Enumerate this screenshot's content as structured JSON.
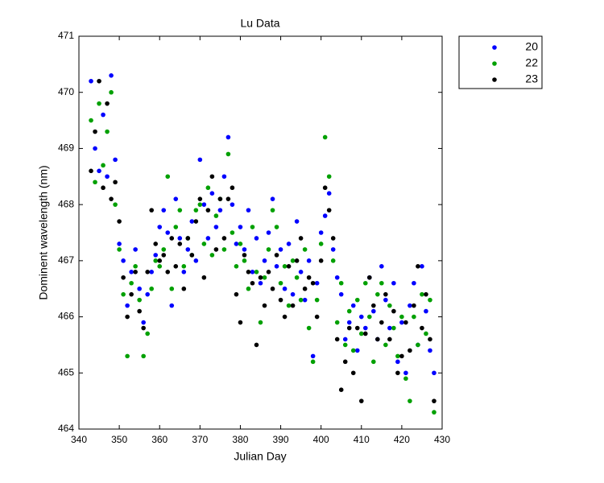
{
  "chart_data": {
    "type": "scatter",
    "title": "Lu Data",
    "xlabel": "Julian Day",
    "ylabel": "Dominent wavelength (nm)",
    "xlim": [
      340,
      430
    ],
    "ylim": [
      464,
      471
    ],
    "xticks": [
      340,
      350,
      360,
      370,
      380,
      390,
      400,
      410,
      420,
      430
    ],
    "yticks": [
      464,
      465,
      466,
      467,
      468,
      469,
      470,
      471
    ],
    "legend": "outside-top-right",
    "x": [
      343,
      344,
      345,
      346,
      347,
      348,
      349,
      350,
      351,
      352,
      353,
      354,
      355,
      356,
      357,
      358,
      359,
      360,
      361,
      362,
      363,
      364,
      365,
      366,
      367,
      368,
      369,
      370,
      371,
      372,
      373,
      374,
      375,
      376,
      377,
      378,
      379,
      380,
      381,
      382,
      383,
      384,
      385,
      386,
      387,
      388,
      389,
      390,
      391,
      392,
      393,
      394,
      395,
      396,
      397,
      398,
      399,
      400,
      401,
      402,
      403,
      404,
      405,
      406,
      407,
      408,
      409,
      410,
      411,
      412,
      413,
      414,
      415,
      416,
      417,
      418,
      419,
      420,
      421,
      422,
      423,
      424,
      425,
      426,
      427,
      428
    ],
    "series": [
      {
        "name": "20",
        "color": "#0000ff",
        "values": [
          470.2,
          469.0,
          468.6,
          469.6,
          468.5,
          470.3,
          468.8,
          467.3,
          467.0,
          466.2,
          466.8,
          467.2,
          466.5,
          465.9,
          466.4,
          466.8,
          467.1,
          467.6,
          467.9,
          467.5,
          466.2,
          468.1,
          467.4,
          466.8,
          467.2,
          467.7,
          467.0,
          468.8,
          468.0,
          467.4,
          468.2,
          467.6,
          467.9,
          468.5,
          469.2,
          468.0,
          467.3,
          467.6,
          467.2,
          467.9,
          466.8,
          467.4,
          466.6,
          467.0,
          467.5,
          468.1,
          466.9,
          467.2,
          466.5,
          467.3,
          466.4,
          467.7,
          466.8,
          466.3,
          467.0,
          465.3,
          466.6,
          467.5,
          467.8,
          468.2,
          467.2,
          466.7,
          466.4,
          465.6,
          465.9,
          466.2,
          465.4,
          466.0,
          465.8,
          466.7,
          466.1,
          465.6,
          466.9,
          466.3,
          465.8,
          466.6,
          465.2,
          465.9,
          465.0,
          466.2,
          466.6,
          465.5,
          466.9,
          466.1,
          465.4,
          465.0
        ]
      },
      {
        "name": "22",
        "color": "#00a000",
        "values": [
          469.5,
          468.4,
          469.8,
          468.7,
          469.3,
          470.0,
          468.0,
          467.2,
          466.4,
          465.3,
          466.6,
          466.9,
          466.3,
          465.3,
          465.7,
          466.5,
          467.0,
          466.9,
          467.2,
          468.5,
          466.5,
          467.6,
          467.9,
          466.9,
          467.4,
          467.1,
          467.9,
          468.0,
          467.3,
          468.3,
          467.1,
          467.8,
          468.1,
          467.2,
          468.9,
          467.5,
          466.9,
          467.3,
          467.0,
          466.5,
          467.6,
          466.8,
          465.9,
          466.7,
          467.2,
          467.9,
          467.6,
          466.6,
          466.9,
          466.2,
          467.0,
          466.7,
          466.3,
          467.2,
          465.8,
          465.2,
          466.3,
          467.3,
          469.2,
          468.5,
          467.0,
          465.9,
          466.6,
          465.5,
          466.1,
          465.4,
          466.3,
          465.7,
          466.6,
          466.0,
          465.2,
          466.4,
          466.6,
          465.5,
          466.2,
          465.8,
          465.3,
          466.0,
          464.9,
          464.5,
          466.0,
          465.5,
          466.4,
          465.7,
          466.3,
          464.3
        ]
      },
      {
        "name": "23",
        "color": "#000000",
        "values": [
          468.6,
          469.3,
          470.2,
          468.3,
          469.8,
          468.1,
          468.4,
          467.7,
          466.7,
          466.0,
          466.4,
          466.8,
          466.1,
          465.8,
          466.8,
          467.9,
          467.3,
          467.0,
          467.1,
          466.8,
          467.4,
          466.9,
          467.3,
          466.5,
          467.4,
          467.1,
          467.7,
          468.1,
          466.7,
          467.9,
          468.5,
          467.2,
          468.1,
          467.4,
          468.1,
          468.3,
          466.4,
          465.9,
          467.1,
          466.8,
          466.6,
          465.5,
          466.7,
          466.2,
          466.8,
          466.5,
          467.1,
          466.3,
          466.0,
          466.9,
          466.2,
          467.0,
          467.4,
          466.5,
          466.7,
          466.6,
          466.0,
          467.0,
          468.3,
          467.9,
          467.4,
          465.6,
          464.7,
          465.2,
          465.8,
          465.0,
          465.8,
          464.5,
          465.7,
          466.7,
          466.2,
          465.6,
          465.9,
          466.4,
          465.6,
          466.1,
          465.0,
          465.3,
          465.9,
          465.4,
          466.2,
          466.9,
          465.8,
          466.4,
          465.6,
          464.5
        ]
      }
    ]
  }
}
